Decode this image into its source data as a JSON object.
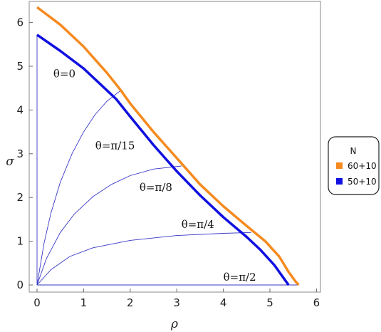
{
  "chart_data": {
    "type": "line",
    "xlabel": "ρ",
    "ylabel": "σ",
    "xlim": [
      0,
      6
    ],
    "ylim": [
      0,
      6.5
    ],
    "xticks": [
      0,
      1,
      2,
      3,
      4,
      5,
      6
    ],
    "yticks": [
      0,
      1,
      2,
      3,
      4,
      5,
      6
    ],
    "grid": false,
    "legend_position": "right",
    "legend_title": "N",
    "series": [
      {
        "name": "60+10",
        "color": "#f58a1f",
        "x": [
          0,
          0.5,
          1.0,
          1.5,
          1.8,
          2.0,
          2.5,
          3.0,
          3.5,
          4.0,
          4.5,
          4.9,
          5.2,
          5.4,
          5.55,
          5.62
        ],
        "y": [
          6.35,
          5.95,
          5.45,
          4.85,
          4.45,
          4.15,
          3.5,
          2.9,
          2.3,
          1.8,
          1.35,
          1.0,
          0.65,
          0.3,
          0.08,
          0.0
        ]
      },
      {
        "name": "50+10",
        "color": "#1010e0",
        "x": [
          0,
          0.5,
          1.0,
          1.5,
          1.7,
          2.0,
          2.5,
          3.0,
          3.5,
          4.0,
          4.5,
          4.8,
          5.1,
          5.3,
          5.4
        ],
        "y": [
          5.72,
          5.35,
          4.95,
          4.45,
          4.25,
          3.85,
          3.2,
          2.6,
          2.05,
          1.55,
          1.1,
          0.8,
          0.45,
          0.15,
          0.0
        ]
      }
    ],
    "theta_curves": [
      {
        "label": "θ=0",
        "x": [
          0,
          0
        ],
        "y": [
          0,
          5.72
        ]
      },
      {
        "label": "θ=π/15",
        "x": [
          0,
          0.15,
          0.3,
          0.5,
          0.75,
          1.0,
          1.25,
          1.5,
          1.8
        ],
        "y": [
          0,
          0.95,
          1.65,
          2.35,
          3.0,
          3.5,
          3.9,
          4.2,
          4.45
        ]
      },
      {
        "label": "θ=π/8",
        "x": [
          0,
          0.2,
          0.5,
          0.8,
          1.2,
          1.6,
          2.0,
          2.5,
          3.1
        ],
        "y": [
          0,
          0.6,
          1.2,
          1.62,
          2.02,
          2.3,
          2.5,
          2.65,
          2.72
        ]
      },
      {
        "label": "θ=π/4",
        "x": [
          0,
          0.3,
          0.7,
          1.2,
          2.0,
          3.0,
          4.0,
          4.6
        ],
        "y": [
          0,
          0.35,
          0.65,
          0.85,
          1.02,
          1.13,
          1.18,
          1.2
        ]
      },
      {
        "label": "θ=π/2",
        "x": [
          0,
          5.6
        ],
        "y": [
          0,
          0
        ]
      }
    ],
    "curve_labels": [
      {
        "text": "θ=0",
        "x": 0.35,
        "y": 4.75
      },
      {
        "text": "θ=π/15",
        "x": 1.25,
        "y": 3.1
      },
      {
        "text": "θ=π/8",
        "x": 2.2,
        "y": 2.15
      },
      {
        "text": "θ=π/4",
        "x": 3.1,
        "y": 1.3
      },
      {
        "text": "θ=π/2",
        "x": 4.0,
        "y": 0.1
      }
    ]
  }
}
